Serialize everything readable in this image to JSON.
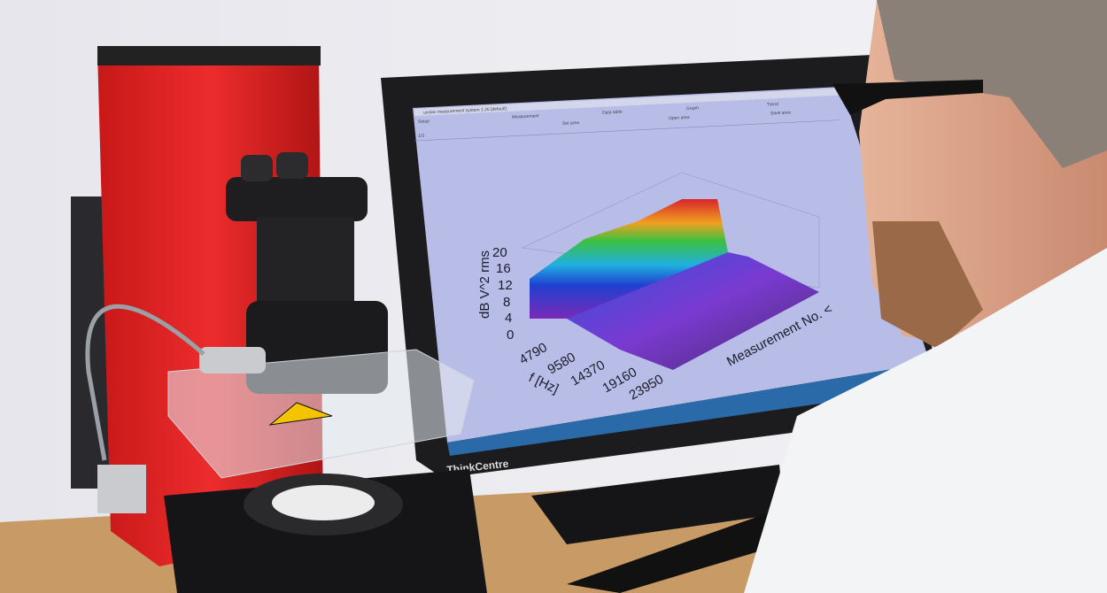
{
  "monitor": {
    "brand": "ThinkCentre",
    "window_title": "ucolac measurement system 1.26 [default]",
    "menu_tabs": [
      "Setup",
      "Measurement",
      "Data table",
      "Graph",
      "Trend"
    ],
    "toolbar_buttons": [
      "Set area",
      "Open area",
      "Save area"
    ],
    "field_value": "1/3"
  },
  "plot": {
    "z_label": "dB V^2 rms",
    "z_ticks": [
      "0",
      "4",
      "8",
      "12",
      "16",
      "20"
    ],
    "x_label": "f [Hz]",
    "x_ticks": [
      "4790",
      "9580",
      "14370",
      "19160",
      "23950"
    ],
    "y_label": "Measurement No. <"
  },
  "device": {
    "warning_label": "laser-warning-sign"
  },
  "colors": {
    "instrument_red": "#e32626",
    "screen_bg": "#b8bde8",
    "monitor_black": "#1c1c1e",
    "desk": "#c89a66"
  }
}
